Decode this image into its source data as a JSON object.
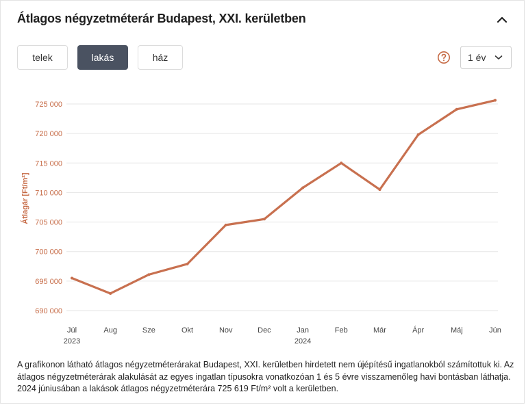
{
  "header": {
    "title": "Átlagos négyzetméterár Budapest, XXI. kerületben"
  },
  "tabs": [
    {
      "label": "telek",
      "active": false
    },
    {
      "label": "lakás",
      "active": true
    },
    {
      "label": "ház",
      "active": false
    }
  ],
  "period_select": {
    "value": "1 év"
  },
  "icons": {
    "collapse": "chevron-up-icon",
    "help": "question-circle-icon",
    "select": "chevron-down-icon"
  },
  "colors": {
    "accent": "#c66a45",
    "line": "#c8704f",
    "active_tab": "#4a5261"
  },
  "chart_data": {
    "type": "line",
    "ylabel": "Átlagár [Ft/m²]",
    "xlabel": "",
    "categories": [
      "Júl",
      "Aug",
      "Sze",
      "Okt",
      "Nov",
      "Dec",
      "Jan",
      "Feb",
      "Már",
      "Ápr",
      "Máj",
      "Jún"
    ],
    "year_labels": [
      {
        "index": 0,
        "label": "2023"
      },
      {
        "index": 6,
        "label": "2024"
      }
    ],
    "series": [
      {
        "values": [
          695500,
          692900,
          696100,
          697900,
          704500,
          705500,
          710800,
          715000,
          710500,
          719800,
          724100,
          725619
        ]
      }
    ],
    "ylim": [
      690000,
      725000
    ],
    "yticks": [
      690000,
      695000,
      700000,
      705000,
      710000,
      715000,
      720000,
      725000
    ],
    "ytick_labels": [
      "690 000",
      "695 000",
      "700 000",
      "705 000",
      "710 000",
      "715 000",
      "720 000",
      "725 000"
    ],
    "grid": true
  },
  "description": "A grafikonon látható átlagos négyzetméterárakat Budapest, XXI. kerületben hirdetett nem újépítésű ingatlanokból számítottuk ki. Az átlagos négyzetméterárak alakulását az egyes ingatlan típusokra vonatkozóan 1 és 5 évre visszamenőleg havi bontásban láthatja. 2024 júniusában a lakások átlagos négyzetméterára 725 619 Ft/m² volt a kerületben."
}
